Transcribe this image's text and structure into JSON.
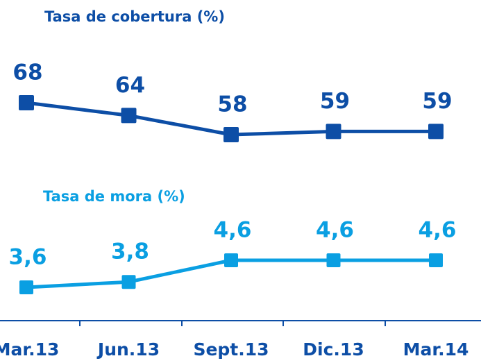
{
  "chart_data": [
    {
      "type": "line",
      "title": "Tasa de cobertura (%)",
      "color": "#0d4ea6",
      "categories": [
        "Mar.13",
        "Jun.13",
        "Sept.13",
        "Dic.13",
        "Mar.14"
      ],
      "values": [
        68,
        64,
        58,
        59,
        59
      ]
    },
    {
      "type": "line",
      "title": "Tasa de mora (%)",
      "color": "#0a9fe2",
      "values": [
        3.6,
        3.8,
        4.6,
        4.6,
        4.6
      ],
      "value_labels": [
        "3,6",
        "3,8",
        "4,6",
        "4,6",
        "4,6"
      ]
    }
  ]
}
